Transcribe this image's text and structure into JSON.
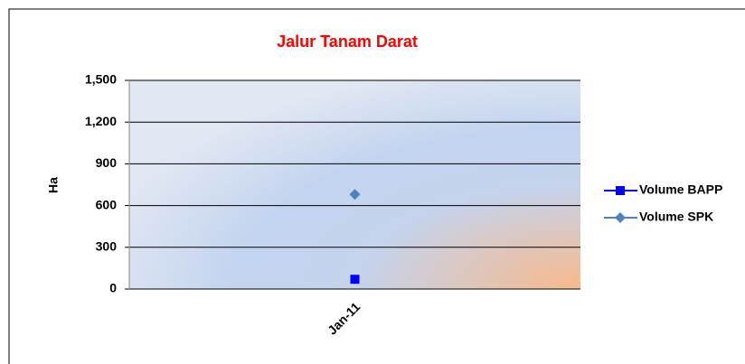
{
  "chart_data": {
    "type": "line",
    "title": "Jalur Tanam Darat",
    "y_label": "Ha",
    "categories": [
      "Jan-11"
    ],
    "series": [
      {
        "name": "Volume BAPP",
        "color": "#0000ff",
        "marker": "square",
        "values": [
          70
        ]
      },
      {
        "name": "Volume SPK",
        "color": "#4f81bd",
        "marker": "diamond",
        "values": [
          680
        ]
      }
    ],
    "ylim": [
      0,
      1500
    ],
    "yticks": [
      0,
      300,
      600,
      900,
      {
        "value": 1200,
        "label": "1,200"
      },
      {
        "value": 1500,
        "label": "1,500"
      }
    ],
    "grid": true,
    "legend": "right"
  }
}
